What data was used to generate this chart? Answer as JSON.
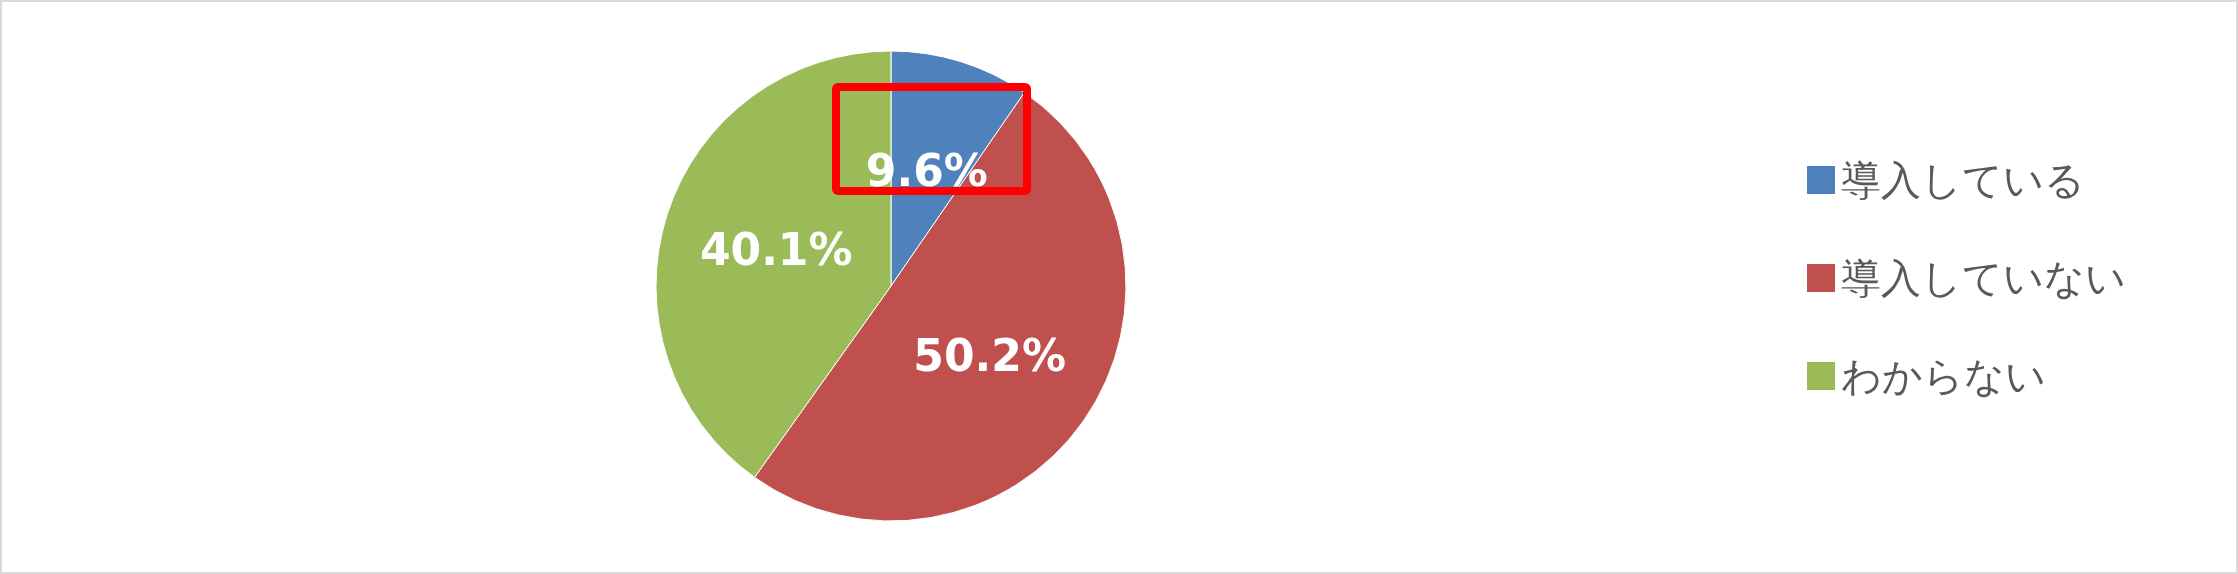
{
  "chart_data": {
    "type": "pie",
    "categories": [
      "導入している",
      "導入していない",
      "わからない"
    ],
    "values": [
      9.6,
      50.2,
      40.1
    ],
    "value_labels": [
      "9.6%",
      "50.2%",
      "40.1%"
    ],
    "colors": [
      "#4f81bd",
      "#c0504d",
      "#9bbb59"
    ],
    "legend": "right"
  }
}
